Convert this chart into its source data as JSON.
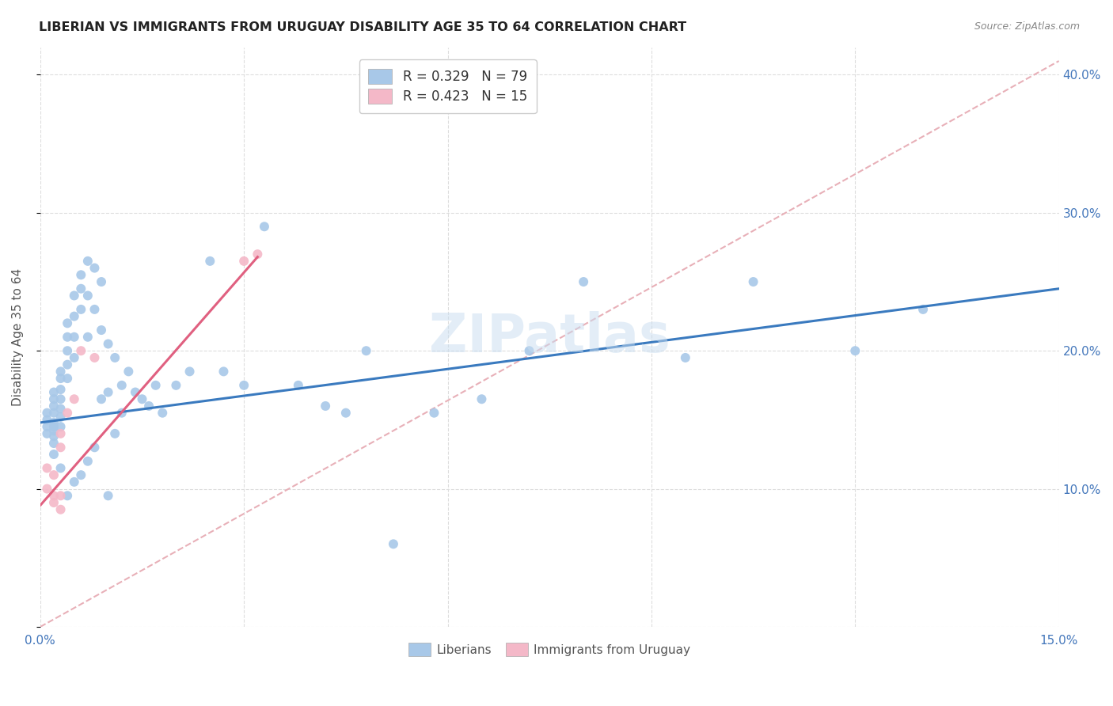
{
  "title": "LIBERIAN VS IMMIGRANTS FROM URUGUAY DISABILITY AGE 35 TO 64 CORRELATION CHART",
  "source": "Source: ZipAtlas.com",
  "ylabel": "Disability Age 35 to 64",
  "xlim": [
    0.0,
    0.15
  ],
  "ylim": [
    0.0,
    0.42
  ],
  "color_blue": "#a8c8e8",
  "color_pink": "#f4b8c8",
  "color_line_blue": "#3a7abf",
  "color_line_pink": "#e06080",
  "color_dashed": "#e8b0b8",
  "watermark": "ZIPatlas",
  "legend_label1": "R = 0.329   N = 79",
  "legend_label2": "R = 0.423   N = 15",
  "legend_label_bottom1": "Liberians",
  "legend_label_bottom2": "Immigrants from Uruguay",
  "liberian_x": [
    0.001,
    0.001,
    0.001,
    0.001,
    0.002,
    0.002,
    0.002,
    0.002,
    0.002,
    0.002,
    0.002,
    0.002,
    0.002,
    0.002,
    0.003,
    0.003,
    0.003,
    0.003,
    0.003,
    0.003,
    0.003,
    0.003,
    0.004,
    0.004,
    0.004,
    0.004,
    0.004,
    0.004,
    0.005,
    0.005,
    0.005,
    0.005,
    0.005,
    0.006,
    0.006,
    0.006,
    0.006,
    0.007,
    0.007,
    0.007,
    0.007,
    0.008,
    0.008,
    0.008,
    0.009,
    0.009,
    0.009,
    0.01,
    0.01,
    0.01,
    0.011,
    0.011,
    0.012,
    0.012,
    0.013,
    0.014,
    0.015,
    0.016,
    0.017,
    0.018,
    0.02,
    0.022,
    0.025,
    0.027,
    0.03,
    0.033,
    0.038,
    0.042,
    0.045,
    0.048,
    0.052,
    0.058,
    0.065,
    0.072,
    0.08,
    0.095,
    0.105,
    0.12,
    0.13
  ],
  "liberian_y": [
    0.155,
    0.15,
    0.145,
    0.14,
    0.17,
    0.165,
    0.16,
    0.155,
    0.148,
    0.145,
    0.142,
    0.138,
    0.133,
    0.125,
    0.185,
    0.18,
    0.172,
    0.165,
    0.158,
    0.152,
    0.145,
    0.115,
    0.22,
    0.21,
    0.2,
    0.19,
    0.18,
    0.095,
    0.24,
    0.225,
    0.21,
    0.195,
    0.105,
    0.255,
    0.245,
    0.23,
    0.11,
    0.265,
    0.24,
    0.21,
    0.12,
    0.26,
    0.23,
    0.13,
    0.25,
    0.215,
    0.165,
    0.205,
    0.17,
    0.095,
    0.195,
    0.14,
    0.175,
    0.155,
    0.185,
    0.17,
    0.165,
    0.16,
    0.175,
    0.155,
    0.175,
    0.185,
    0.265,
    0.185,
    0.175,
    0.29,
    0.175,
    0.16,
    0.155,
    0.2,
    0.06,
    0.155,
    0.165,
    0.2,
    0.25,
    0.195,
    0.25,
    0.2,
    0.23
  ],
  "uruguay_x": [
    0.001,
    0.001,
    0.002,
    0.002,
    0.002,
    0.003,
    0.003,
    0.003,
    0.003,
    0.004,
    0.005,
    0.006,
    0.008,
    0.03,
    0.032
  ],
  "uruguay_y": [
    0.115,
    0.1,
    0.11,
    0.095,
    0.09,
    0.14,
    0.13,
    0.095,
    0.085,
    0.155,
    0.165,
    0.2,
    0.195,
    0.265,
    0.27
  ],
  "blue_line_x": [
    0.0,
    0.15
  ],
  "blue_line_y": [
    0.148,
    0.245
  ],
  "pink_line_x": [
    0.0,
    0.032
  ],
  "pink_line_y": [
    0.088,
    0.268
  ],
  "dashed_line_x": [
    0.0,
    0.15
  ],
  "dashed_line_y": [
    0.0,
    0.41
  ]
}
